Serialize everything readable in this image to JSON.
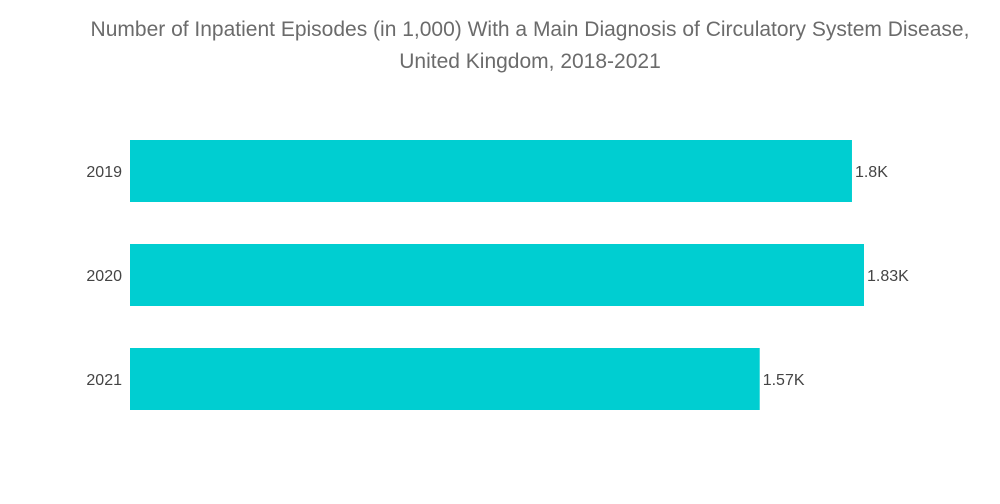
{
  "chart_data": {
    "type": "bar",
    "orientation": "horizontal",
    "title": "Number of Inpatient Episodes (in 1,000) With a Main Diagnosis of Circulatory System Disease, United Kingdom, 2018-2021",
    "categories": [
      "2019",
      "2020",
      "2021"
    ],
    "values": [
      1800,
      1830,
      1570
    ],
    "value_labels": [
      "1.8K",
      "1.83K",
      "1.57K"
    ],
    "xlim": [
      0,
      1830
    ],
    "xlabel": "",
    "ylabel": "",
    "grid": false,
    "legend": "none",
    "bar_color": "#00CED1"
  }
}
